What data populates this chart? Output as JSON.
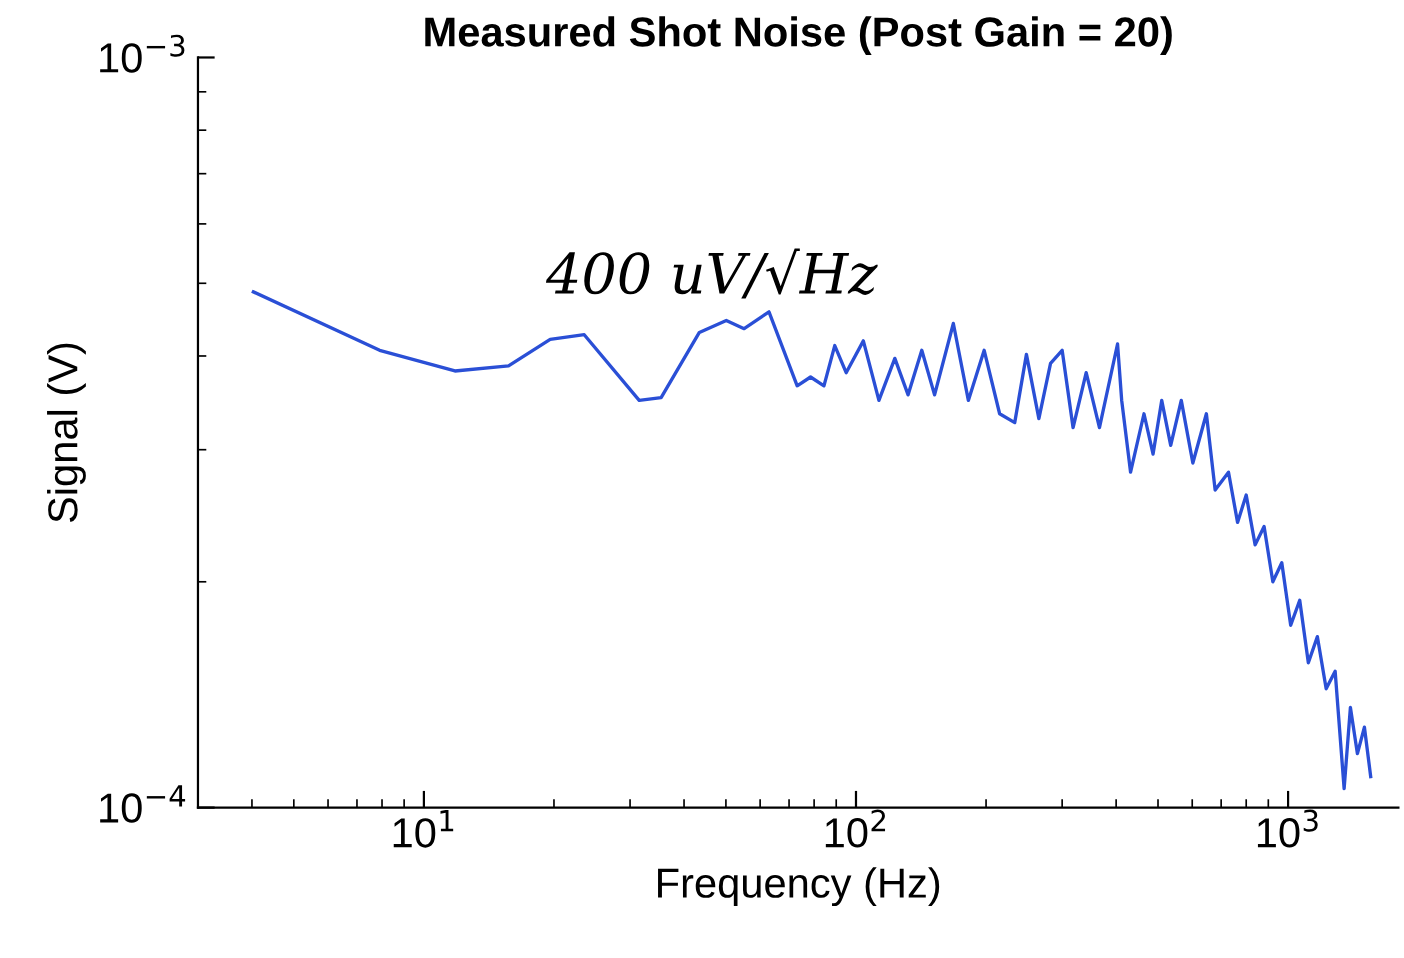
{
  "chart_data": {
    "type": "line",
    "title": "Measured Shot Noise (Post Gain = 20)",
    "xlabel": "Frequency (Hz)",
    "ylabel": "Signal (V)",
    "annotations": [
      "400 uV/√Hz"
    ],
    "log": "xy",
    "grid": false,
    "legend": false,
    "marker": "none",
    "line_style": "solid",
    "xlim": [
      3,
      1800
    ],
    "ylim": [
      0.0001,
      0.001
    ],
    "xticks": [
      {
        "value": 10,
        "label": "10$^{1}$"
      },
      {
        "value": 100,
        "label": "10$^{2}$"
      },
      {
        "value": 1000,
        "label": "10$^{3}$"
      }
    ],
    "yticks": [
      {
        "value": 0.0001,
        "label": "10$^{−4}$"
      },
      {
        "value": 0.001,
        "label": "10$^{−3}$"
      }
    ],
    "series": [
      {
        "color": "#2a4fd6",
        "x": [
          4.03,
          7.9,
          11.8,
          15.7,
          19.6,
          23.5,
          31.5,
          35.4,
          43.4,
          50.1,
          55.1,
          62.9,
          73.1,
          78.5,
          84.3,
          89.3,
          94.9,
          104,
          113,
          123,
          132,
          142,
          152,
          168,
          182,
          198,
          215,
          233,
          248,
          265,
          282,
          300,
          318,
          341,
          366,
          403,
          412,
          432,
          464,
          487,
          510,
          535,
          566,
          602,
          647,
          678,
          728,
          764,
          800,
          839,
          880,
          922,
          967,
          1014,
          1064,
          1114,
          1169,
          1225,
          1285,
          1348,
          1394,
          1447,
          1502,
          1553
        ],
        "values": [
          0.000487,
          0.000407,
          0.000382,
          0.000388,
          0.000421,
          0.000427,
          0.000349,
          0.000352,
          0.00043,
          0.000446,
          0.000435,
          0.000458,
          0.000365,
          0.000375,
          0.000365,
          0.000413,
          0.00038,
          0.000419,
          0.000349,
          0.000397,
          0.000355,
          0.000407,
          0.000355,
          0.000442,
          0.000349,
          0.000407,
          0.000335,
          0.000326,
          0.000402,
          0.00033,
          0.000391,
          0.000407,
          0.000321,
          0.00038,
          0.000321,
          0.000415,
          0.000349,
          0.00028,
          0.000335,
          0.000296,
          0.000349,
          0.000304,
          0.000349,
          0.000288,
          0.000335,
          0.000265,
          0.00028,
          0.00024,
          0.000261,
          0.000224,
          0.000237,
          0.0002,
          0.000212,
          0.000175,
          0.000189,
          0.000156,
          0.000169,
          0.000144,
          0.000152,
          0.000106,
          0.000136,
          0.000118,
          0.000128,
          0.00011
        ]
      }
    ]
  }
}
